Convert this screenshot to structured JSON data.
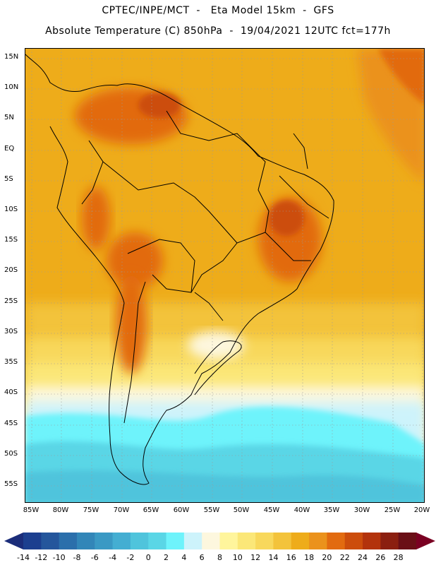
{
  "header": {
    "line1": "CPTEC/INPE/MCT  -   Eta Model 15km  -  GFS",
    "line2": "Absolute Temperature (C) 850hPa  -  19/04/2021 12UTC fct=177h"
  },
  "map": {
    "lat_labels": [
      "15N",
      "10N",
      "5N",
      "EQ",
      "5S",
      "10S",
      "15S",
      "20S",
      "25S",
      "30S",
      "35S",
      "40S",
      "45S",
      "50S",
      "55S"
    ],
    "lon_labels": [
      "85W",
      "80W",
      "75W",
      "70W",
      "65W",
      "60W",
      "55W",
      "50W",
      "45W",
      "40W",
      "35W",
      "30W",
      "25W",
      "20W"
    ]
  },
  "colorbar": {
    "labels": [
      "-14",
      "-12",
      "-10",
      "-8",
      "-6",
      "-4",
      "-2",
      "0",
      "2",
      "4",
      "6",
      "8",
      "10",
      "12",
      "14",
      "16",
      "18",
      "20",
      "22",
      "24",
      "26",
      "28"
    ],
    "colors": [
      "#1c3f8f",
      "#24569c",
      "#2b6fab",
      "#3286b8",
      "#3a99c4",
      "#44aed2",
      "#4fc4dc",
      "#5ad6e6",
      "#6ef3fb",
      "#cdf3fb",
      "#fdf7de",
      "#fff59c",
      "#fbe778",
      "#f8d85c",
      "#f3c33b",
      "#eeac1a",
      "#eb921c",
      "#e26b10",
      "#cc4d0c",
      "#b3330c",
      "#8b1f10",
      "#6a0f16"
    ],
    "triangle_low": "#1b2d7a",
    "triangle_high": "#7a0022"
  }
}
